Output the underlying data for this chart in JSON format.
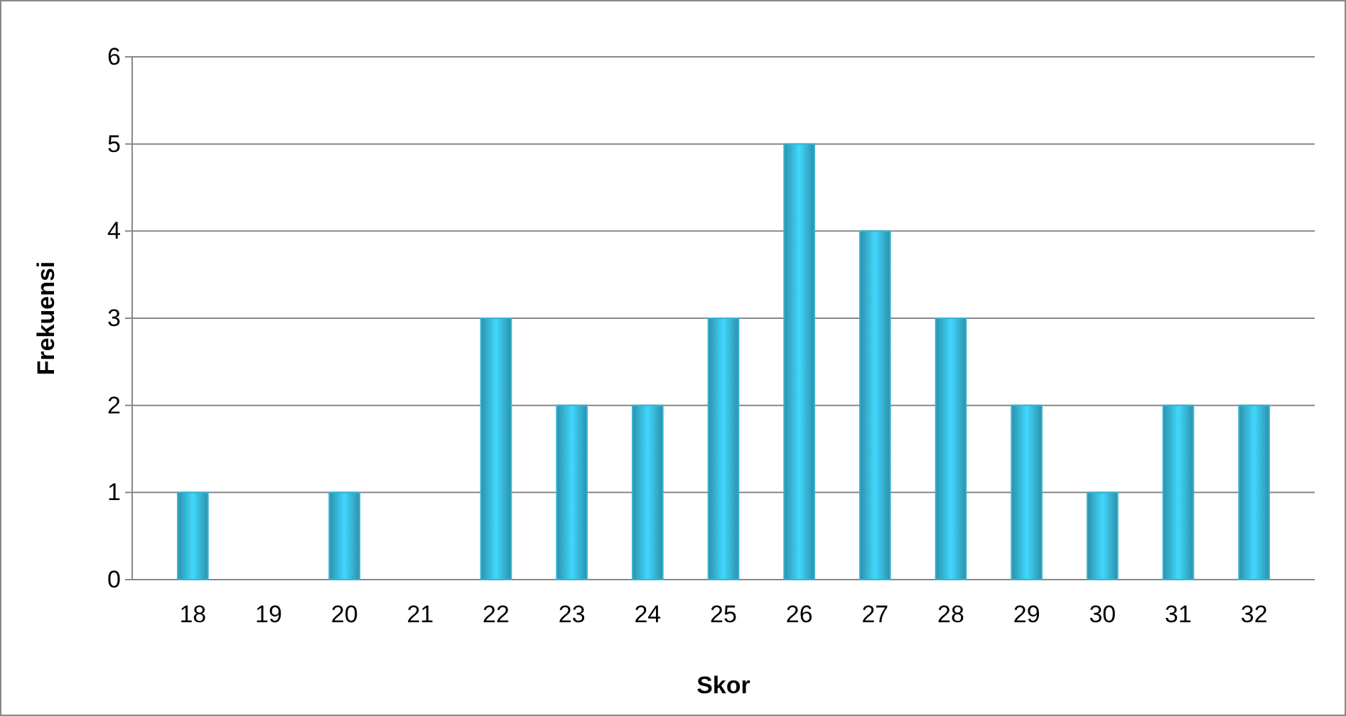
{
  "chart_data": {
    "type": "bar",
    "xlabel": "Skor",
    "ylabel": "Frekuensi",
    "categories": [
      "18",
      "19",
      "20",
      "21",
      "22",
      "23",
      "24",
      "25",
      "26",
      "27",
      "28",
      "29",
      "30",
      "31",
      "32"
    ],
    "values": [
      1,
      0,
      1,
      0,
      3,
      2,
      2,
      3,
      5,
      4,
      3,
      2,
      1,
      2,
      2
    ],
    "color": "#36b4d4",
    "ylim": [
      0,
      6
    ],
    "yticks": [
      0,
      1,
      2,
      3,
      4,
      5,
      6
    ],
    "grid": "y"
  }
}
